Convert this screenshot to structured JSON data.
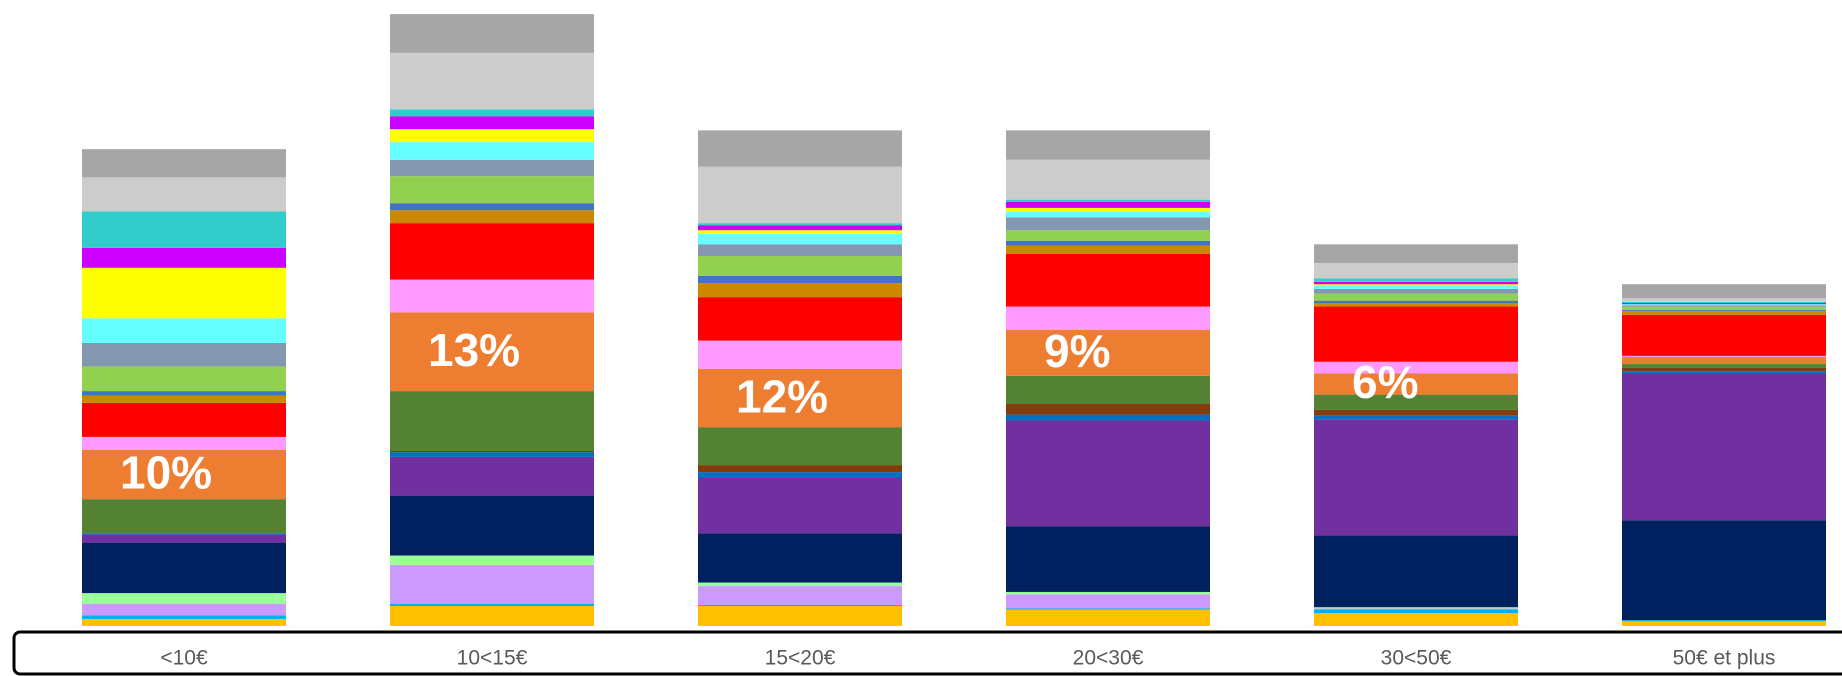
{
  "chart_data": {
    "type": "stacked-bar",
    "categories": [
      "<10€",
      "10<15€",
      "15<20€",
      "20<30€",
      "30<50€",
      "50€ et plus"
    ],
    "ylim": [
      0,
      533
    ],
    "grid": false,
    "series": [
      {
        "color": "#ffc000",
        "values": [
          6,
          17,
          17,
          14,
          11,
          4
        ]
      },
      {
        "color": "#00b0f0",
        "values": [
          3,
          2,
          1,
          1,
          3,
          1
        ]
      },
      {
        "color": "#cc99ff",
        "values": [
          10,
          33,
          16,
          12,
          1,
          0
        ]
      },
      {
        "color": "#99ff99",
        "values": [
          9,
          8,
          3,
          2,
          1,
          0
        ]
      },
      {
        "color": "#002060",
        "values": [
          43,
          51,
          42,
          56,
          61,
          85
        ]
      },
      {
        "color": "#7030a0",
        "values": [
          7,
          33,
          47,
          90,
          99,
          125
        ]
      },
      {
        "color": "#0070c0",
        "values": [
          1,
          4,
          5,
          5,
          3,
          2
        ]
      },
      {
        "color": "#843c0c",
        "values": [
          0,
          1,
          6,
          9,
          5,
          3
        ]
      },
      {
        "color": "#548235",
        "values": [
          29,
          51,
          32,
          24,
          13,
          3
        ]
      },
      {
        "color": "#ed7d31",
        "values": [
          42,
          67,
          50,
          39,
          18,
          6
        ],
        "labels": [
          "10%",
          "13%",
          "12%",
          "9%",
          "6%",
          null
        ]
      },
      {
        "color": "#ff99ff",
        "values": [
          11,
          28,
          24,
          20,
          10,
          1
        ]
      },
      {
        "color": "#ff0000",
        "values": [
          29,
          48,
          37,
          45,
          47,
          35
        ]
      },
      {
        "color": "#cc8800",
        "values": [
          6,
          11,
          12,
          7,
          3,
          3
        ]
      },
      {
        "color": "#4472c4",
        "values": [
          4,
          6,
          6,
          4,
          2,
          1
        ]
      },
      {
        "color": "#92d050",
        "values": [
          21,
          23,
          17,
          9,
          6,
          3
        ]
      },
      {
        "color": "#8497b0",
        "values": [
          20,
          14,
          10,
          11,
          4,
          1
        ]
      },
      {
        "color": "#66ffff",
        "values": [
          21,
          15,
          9,
          5,
          3,
          1
        ]
      },
      {
        "color": "#ffff00",
        "values": [
          43,
          11,
          3,
          3,
          1,
          0
        ]
      },
      {
        "color": "#cc00ff",
        "values": [
          17,
          11,
          4,
          5,
          2,
          1
        ]
      },
      {
        "color": "#33cccc",
        "values": [
          31,
          6,
          2,
          2,
          3,
          1
        ]
      },
      {
        "color": "#cccccc",
        "values": [
          29,
          48,
          48,
          34,
          13,
          3
        ]
      },
      {
        "color": "#a6a6a6",
        "values": [
          24,
          33,
          31,
          25,
          16,
          12
        ]
      }
    ]
  }
}
